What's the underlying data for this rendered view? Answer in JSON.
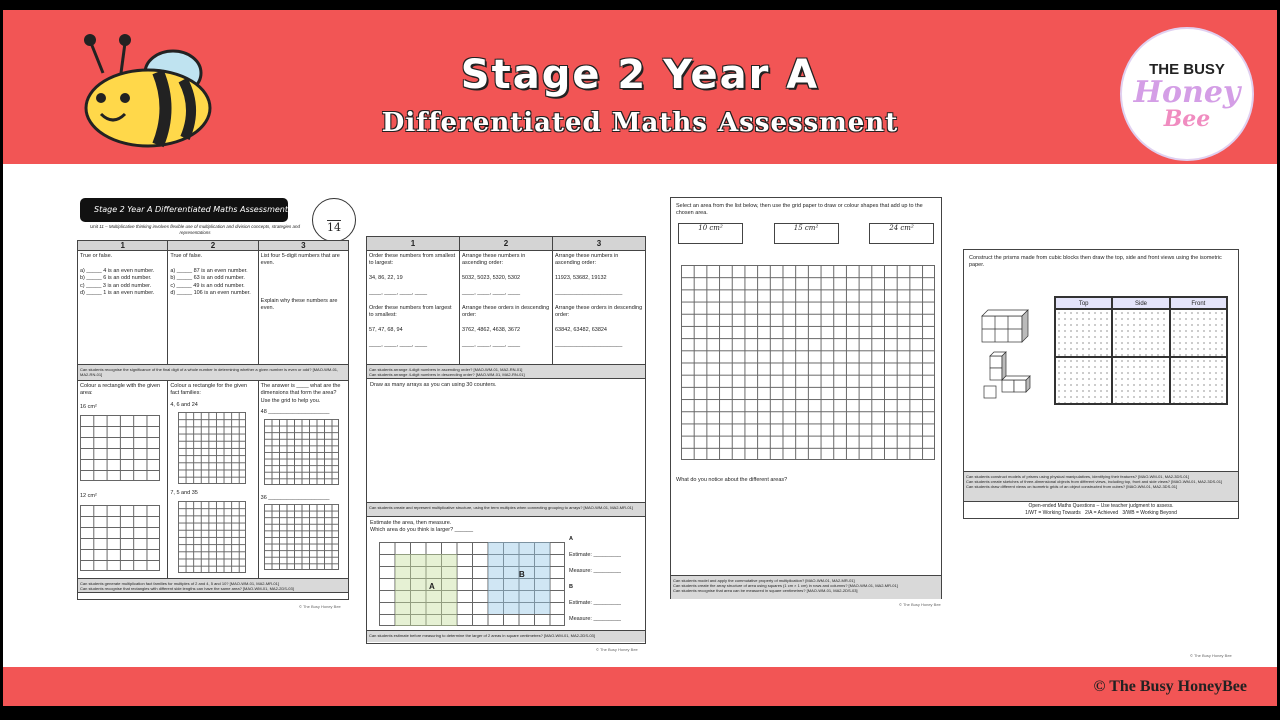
{
  "banner": {
    "title": "Stage 2 Year A",
    "subtitle": "Differentiated Maths Assessment",
    "logo": {
      "line1": "THE BUSY",
      "line2": "Honey",
      "line3": "Bee"
    },
    "footer": "© The Busy HoneyBee",
    "accent": "#f25555"
  },
  "page1": {
    "header": "Stage 2 Year A Differentiated Maths Assessment",
    "score": "14",
    "unit": "Unit 11 – Multiplicative thinking involves flexible use of multiplication and division concepts, strategies and representations",
    "cols": [
      "1",
      "2",
      "3"
    ],
    "r1": [
      "True or false.\n\na) _____ 4 is an even number.\nb) _____ 6 is an odd number.\nc) _____ 3 is an odd number.\nd) _____ 1 is an even number.",
      "True of false.\n\na) _____ 87 is an even number.\nb) _____ 63 is an odd number.\nc) _____ 49 is an odd number.\nd) _____ 106 is an even number.",
      "List four 5-digit numbers that are even.\n\n\n\n\nExplain why these numbers are even."
    ],
    "n1": "Can students recognise the significance of the final digit of a whole number in determining whether a given number is even or odd? [MAO-WM-01, MA2-RN-01]",
    "r2": {
      "c1": "Colour a rectangle with the given area:",
      "c1a": "16 cm²",
      "c1b": "12 cm²",
      "c2": "Colour a rectangle for the given fact families:",
      "c2a": "4, 6 and 24",
      "c2b": "7, 5 and 35",
      "c3": "The answer is ____ what are the dimensions that form the area? Use the grid to help you.",
      "c3a": "48 ____________________",
      "c3b": "36 ____________________"
    },
    "n2": "Can students generate multiplication fact families for multiples of 2 and 4, 5 and 10? [MAO-WM-01, MA2-MR-01]\nCan students recognise that rectangles with different side lengths can have the same area? [MAO-WM-01, MA2-2DS-03]",
    "copy": "© The Busy Honey Bee"
  },
  "page2": {
    "cols": [
      "1",
      "2",
      "3"
    ],
    "r1": [
      "Order these numbers from smallest to largest:\n\n34, 86, 22, 19\n\n____, ____, ____, ____\n\nOrder these numbers from largest to smallest:\n\n57, 47, 68, 94\n\n____, ____, ____, ____",
      "Arrange these numbers in ascending order:\n\n5032, 5023, 5320, 5302\n\n____, ____, ____, ____\n\nArrange these orders in descending order:\n\n3762, 4862, 4638, 3672\n\n____, ____, ____, ____",
      "Arrange these numbers in ascending order:\n\n11923, 53682, 19132\n\n______________________\n\nArrange these orders in descending order:\n\n63842, 63482, 63824\n\n______________________"
    ],
    "n1": "Can students arrange 4-digit numbers in ascending order? [MAO-WM-01, MA2-RN-01]\nCan students arrange 4-digit numbers in descending order? [MAO-WM-01, MA2-RN-01]",
    "arrays": "Draw as many arrays as you can using 30 counters.",
    "n2": "Can students create and represent multiplicative structure, using the term multiples when connecting grouping to arrays? [MAO-WM-01, MA2-MR-01]",
    "estimate": "Estimate the area, then measure.\nWhich area do you think is larger? ______",
    "labelA": "A",
    "labelB": "B",
    "est": "Estimate: _________",
    "meas": "Measure: _________",
    "n3": "Can students estimate before measuring to determine the larger of 2 areas in square centimetres? [MAO-WM-01, MA2-2DS-03]",
    "copy": "© The Busy Honey Bee"
  },
  "page3": {
    "instr": "Select an area from the list below, then use the grid paper to draw or colour shapes that add up to the chosen area.",
    "areas": [
      "10 cm²",
      "15 cm²",
      "24 cm²"
    ],
    "question": "What do you notice about the different areas?",
    "n": "Can students model and apply the commutative property of multiplication? [MAO-WM-01, MA2-MR-01]\nCan students create the array structure of area using squares (1 cm × 1 cm) in rows and columns? [MAO-WM-01, MA2-MR-01]\nCan students recognise that area can be measured in square centimetres? [MAO-WM-01, MA2-2DS-03]",
    "copy": "© The Busy Honey Bee"
  },
  "page4": {
    "instr": "Construct the prisms made from cubic blocks then draw the top, side and front views using the isometric paper.",
    "views": [
      "Top",
      "Side",
      "Front"
    ],
    "n": "Can students construct models of prisms using physical manipulatives, identifying their features? [MAO-WM-01, MA2-3DS-01]\nCan students create sketches of three-dimensional objects from different views, including top, front and side views? [MAO-WM-01, MA2-3DS-01]\nCan students draw different views on isometric grids of an object constructed from cubes? [MAO-WM-01, MA2-3DS-01]",
    "legend1": "Open-ended Maths Questions – Use teacher judgment to assess.",
    "legend2": "1/WT = Working Towards   2/A = Achieved   3/WB = Working Beyond",
    "copy": "© The Busy Honey Bee"
  }
}
